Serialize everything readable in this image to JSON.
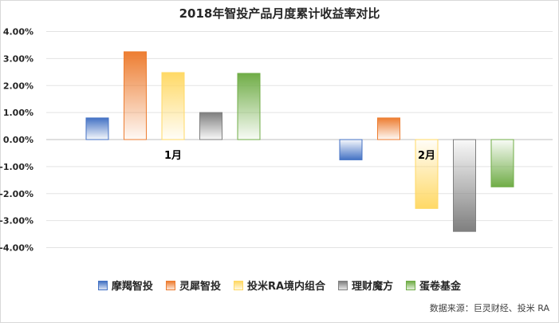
{
  "chart_data": {
    "type": "bar",
    "title": "2018年智投产品月度累计收益率对比",
    "categories": [
      "1月",
      "2月"
    ],
    "series": [
      {
        "name": "摩羯智投",
        "values": [
          0.8,
          -0.75
        ],
        "color": "#4472c4"
      },
      {
        "name": "灵犀智投",
        "values": [
          3.25,
          0.8
        ],
        "color": "#ed7d31"
      },
      {
        "name": "投米RA境内组合",
        "values": [
          2.48,
          -2.55
        ],
        "color": "#ffd966"
      },
      {
        "name": "理财魔方",
        "values": [
          1.0,
          -3.4
        ],
        "color": "#7f7f7f"
      },
      {
        "name": "蛋卷基金",
        "values": [
          2.45,
          -1.75
        ],
        "color": "#70ad47"
      }
    ],
    "ylim": [
      -4,
      4
    ],
    "yticks": [
      "-4.00%",
      "-3.00%",
      "-2.00%",
      "-1.00%",
      "0.00%",
      "1.00%",
      "2.00%",
      "3.00%",
      "4.00%"
    ],
    "ylabel": "",
    "xlabel": "",
    "grid": true,
    "legend_position": "bottom"
  },
  "source_note": "数据来源：巨灵财经、投米 RA"
}
